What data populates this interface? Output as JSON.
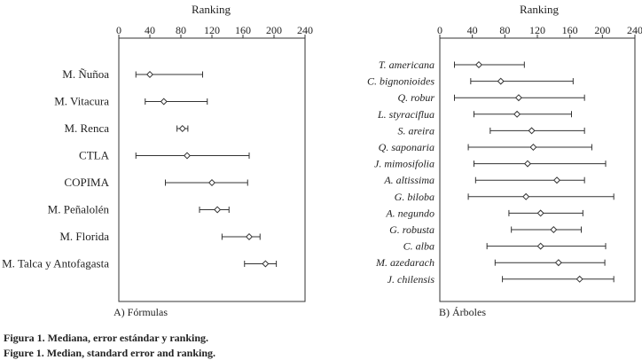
{
  "chart_data": [
    {
      "type": "scatter",
      "subtype": "median-with-error-bars",
      "panel_label": "A) Fórmulas",
      "top_axis_label": "Ranking",
      "xlim": [
        0,
        240
      ],
      "ticks": [
        0,
        40,
        80,
        120,
        160,
        200,
        240
      ],
      "orientation": "horizontal",
      "categories": [
        "M. Ñuñoa",
        "M. Vitacura",
        "M. Renca",
        "CTLA",
        "COPIMA",
        "M. Peñalolén",
        "M. Florida",
        "M. Talca y Antofagasta"
      ],
      "series": [
        {
          "name": "Mediana",
          "values": [
            40,
            58,
            82,
            88,
            120,
            127,
            168,
            189
          ]
        },
        {
          "name": "Error lower",
          "values": [
            22,
            34,
            75,
            22,
            60,
            104,
            133,
            162
          ]
        },
        {
          "name": "Error upper",
          "values": [
            108,
            114,
            89,
            168,
            166,
            142,
            182,
            203
          ]
        }
      ]
    },
    {
      "type": "scatter",
      "subtype": "median-with-error-bars",
      "panel_label": "B) Árboles",
      "top_axis_label": "Ranking",
      "xlim": [
        0,
        240
      ],
      "ticks": [
        0,
        40,
        80,
        120,
        160,
        200,
        240
      ],
      "orientation": "horizontal",
      "categories": [
        "T. americana",
        "C. bignonioides",
        "Q. robur",
        "L. styraciflua",
        "S. areira",
        "Q. saponaria",
        "J. mimosifolia",
        "A. altissima",
        "G. biloba",
        "A. negundo",
        "G. robusta",
        "C. alba",
        "M. azedarach",
        "J. chilensis"
      ],
      "series": [
        {
          "name": "Mediana",
          "values": [
            48,
            75,
            97,
            95,
            113,
            115,
            108,
            144,
            106,
            124,
            140,
            124,
            146,
            172
          ]
        },
        {
          "name": "Error lower",
          "values": [
            18,
            38,
            18,
            42,
            62,
            35,
            42,
            44,
            35,
            85,
            88,
            58,
            68,
            77
          ]
        },
        {
          "name": "Error upper",
          "values": [
            104,
            164,
            178,
            162,
            178,
            187,
            204,
            178,
            214,
            176,
            174,
            204,
            203,
            214
          ]
        }
      ]
    }
  ],
  "caption": {
    "spanish": "Figura 1. Mediana, error estándar y ranking.",
    "english": "Figure 1. Median, standard error and ranking."
  }
}
